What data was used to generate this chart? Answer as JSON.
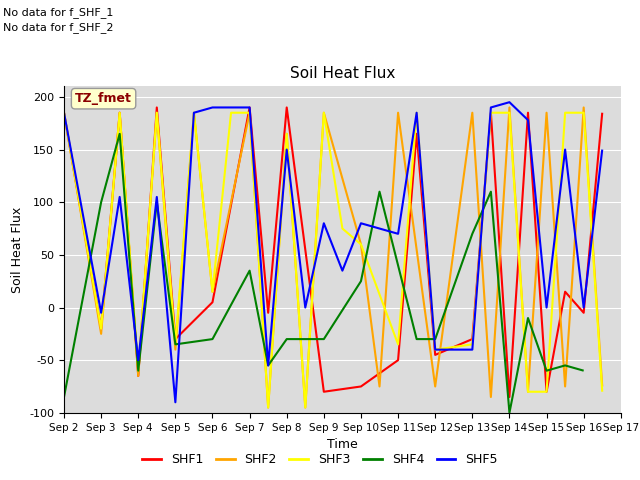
{
  "title": "Soil Heat Flux",
  "xlabel": "Time",
  "ylabel": "Soil Heat Flux",
  "ylim": [
    -100,
    210
  ],
  "background_color": "#dcdcdc",
  "annotations": [
    "No data for f_SHF_1",
    "No data for f_SHF_2"
  ],
  "legend_label": "TZ_fmet",
  "series": {
    "SHF1": {
      "color": "red",
      "x": [
        2,
        3,
        3.5,
        4,
        4.5,
        5,
        6,
        7,
        7.5,
        8,
        9,
        10,
        11,
        11.5,
        12,
        13,
        13.5,
        14,
        14.5,
        15,
        15.5,
        16,
        16.5
      ],
      "y": [
        185,
        -20,
        185,
        -65,
        190,
        -30,
        5,
        190,
        -5,
        190,
        -80,
        -75,
        -50,
        165,
        -45,
        -30,
        185,
        -85,
        185,
        -80,
        15,
        -5,
        185
      ]
    },
    "SHF2": {
      "color": "orange",
      "x": [
        2,
        3,
        3.5,
        4,
        4.5,
        5,
        5.5,
        6,
        7,
        7.5,
        8,
        8.5,
        9,
        10,
        10.5,
        11,
        12,
        13,
        13.5,
        14,
        14.5,
        15,
        15.5,
        16,
        16.5
      ],
      "y": [
        185,
        -25,
        185,
        -65,
        185,
        -40,
        185,
        15,
        185,
        -95,
        165,
        -95,
        185,
        60,
        -75,
        185,
        -75,
        185,
        -85,
        190,
        -80,
        185,
        -75,
        190,
        -75
      ]
    },
    "SHF3": {
      "color": "yellow",
      "x": [
        2,
        3,
        3.5,
        4,
        4.5,
        5,
        5.5,
        6,
        6.5,
        7,
        7.5,
        8,
        8.5,
        9,
        9.5,
        10,
        11,
        11.5,
        12,
        13,
        13.5,
        14,
        14.5,
        15,
        15.5,
        16,
        16.5
      ],
      "y": [
        185,
        -20,
        185,
        -60,
        185,
        -35,
        185,
        15,
        185,
        185,
        -95,
        165,
        -95,
        185,
        75,
        60,
        -35,
        185,
        -40,
        -35,
        185,
        185,
        -80,
        -80,
        185,
        185,
        -80
      ]
    },
    "SHF4": {
      "color": "green",
      "x": [
        2,
        3,
        3.5,
        4,
        4.5,
        5,
        6,
        7,
        7.5,
        8,
        9,
        10,
        10.5,
        11,
        11.5,
        12,
        13,
        13.5,
        14,
        14.5,
        15,
        15.5,
        16
      ],
      "y": [
        -85,
        100,
        165,
        -60,
        100,
        -35,
        -30,
        35,
        -55,
        -30,
        -30,
        25,
        110,
        40,
        -30,
        -30,
        70,
        110,
        -100,
        -10,
        -60,
        -55,
        -60
      ]
    },
    "SHF5": {
      "color": "blue",
      "x": [
        2,
        3,
        3.5,
        4,
        4.5,
        5,
        5.5,
        6,
        7,
        7.5,
        8,
        8.5,
        9,
        9.5,
        10,
        11,
        11.5,
        12,
        13,
        13.5,
        14,
        14.5,
        15,
        15.5,
        16,
        16.5
      ],
      "y": [
        185,
        -5,
        105,
        -50,
        105,
        -90,
        185,
        190,
        190,
        -55,
        150,
        0,
        80,
        35,
        80,
        70,
        185,
        -40,
        -40,
        190,
        195,
        178,
        0,
        150,
        0,
        150
      ]
    }
  },
  "x_ticks": [
    "Sep 2",
    "Sep 3",
    "Sep 4",
    "Sep 5",
    "Sep 6",
    "Sep 7",
    "Sep 8",
    "Sep 9",
    "Sep 10",
    "Sep 11",
    "Sep 12",
    "Sep 13",
    "Sep 14",
    "Sep 15",
    "Sep 16",
    "Sep 17"
  ],
  "x_tick_vals": [
    2,
    3,
    4,
    5,
    6,
    7,
    8,
    9,
    10,
    11,
    12,
    13,
    14,
    15,
    16,
    17
  ],
  "y_ticks": [
    -100,
    -50,
    0,
    50,
    100,
    150,
    200
  ],
  "linewidth": 1.5
}
